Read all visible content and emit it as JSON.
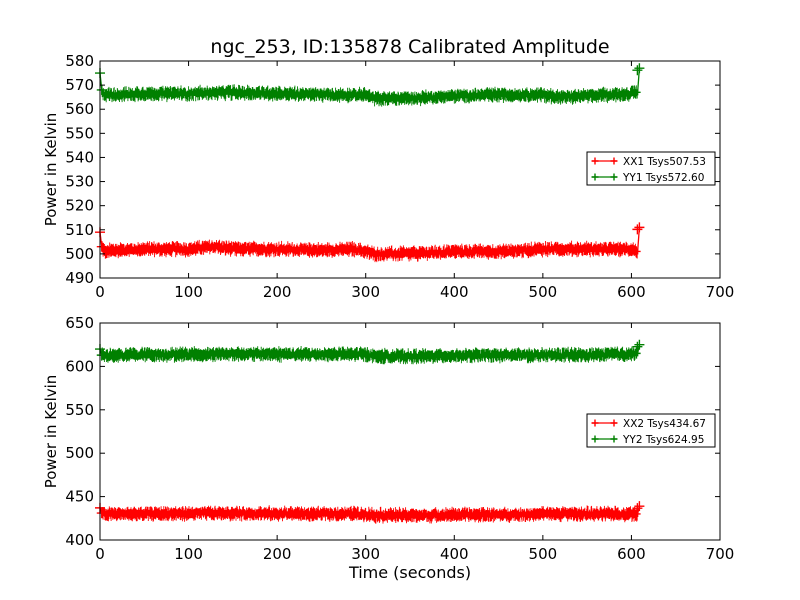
{
  "figure": {
    "title": "ngc_253, ID:135878 Calibrated Amplitude",
    "xlabel": "Time (seconds)"
  },
  "chart_data": [
    {
      "type": "line",
      "ylabel": "Power in Kelvin",
      "xlim": [
        0,
        700
      ],
      "ylim": [
        490,
        580
      ],
      "xticks": [
        "0",
        "100",
        "200",
        "300",
        "400",
        "500",
        "600",
        "700"
      ],
      "yticks": [
        "490",
        "500",
        "510",
        "520",
        "530",
        "540",
        "550",
        "560",
        "570",
        "580"
      ],
      "grid": false,
      "legend_position": "center-right",
      "series": [
        {
          "name": "XX1 Tsys507.53",
          "color": "#ff0000",
          "x": [
            0,
            2,
            5,
            20,
            50,
            100,
            130,
            150,
            200,
            250,
            290,
            300,
            310,
            340,
            350,
            400,
            450,
            500,
            550,
            600,
            607,
            609
          ],
          "values": [
            509,
            503,
            501,
            501.5,
            502,
            502,
            503,
            502,
            502,
            501.5,
            502,
            501,
            500,
            500,
            500,
            501,
            501,
            502,
            502,
            502,
            501,
            511
          ],
          "marker": "+"
        },
        {
          "name": "YY1 Tsys572.60",
          "color": "#008000",
          "x": [
            0,
            2,
            5,
            20,
            50,
            100,
            150,
            200,
            250,
            300,
            310,
            350,
            400,
            450,
            500,
            520,
            550,
            600,
            607,
            609
          ],
          "values": [
            575,
            568,
            566,
            566,
            566.5,
            566.5,
            567,
            566.5,
            566,
            566,
            564.5,
            564.5,
            565.5,
            566,
            566,
            565,
            565.5,
            566.5,
            567,
            577
          ],
          "marker": "+"
        }
      ]
    },
    {
      "type": "line",
      "ylabel": "Power in Kelvin",
      "xlabel": "Time (seconds)",
      "xlim": [
        0,
        700
      ],
      "ylim": [
        400,
        650
      ],
      "xticks": [
        "0",
        "100",
        "200",
        "300",
        "400",
        "500",
        "600",
        "700"
      ],
      "yticks": [
        "400",
        "450",
        "500",
        "550",
        "600",
        "650"
      ],
      "grid": false,
      "legend_position": "center-right",
      "series": [
        {
          "name": "XX2 Tsys434.67",
          "color": "#ff0000",
          "x": [
            0,
            2,
            5,
            50,
            100,
            130,
            200,
            250,
            300,
            310,
            350,
            400,
            450,
            500,
            550,
            600,
            607,
            609
          ],
          "values": [
            437,
            431,
            430,
            430,
            430.5,
            431,
            430.5,
            430,
            430,
            428.5,
            428.5,
            429,
            429,
            430,
            430,
            430,
            430,
            439
          ],
          "marker": "+"
        },
        {
          "name": "YY2 Tsys624.95",
          "color": "#008000",
          "x": [
            0,
            2,
            5,
            50,
            100,
            150,
            200,
            250,
            300,
            310,
            350,
            400,
            450,
            500,
            550,
            600,
            607,
            609
          ],
          "values": [
            620,
            613,
            612.5,
            613.5,
            614,
            614.5,
            614,
            614,
            614,
            612,
            611.5,
            612.5,
            613,
            613,
            613,
            614.5,
            615,
            625
          ],
          "marker": "+"
        }
      ]
    }
  ]
}
